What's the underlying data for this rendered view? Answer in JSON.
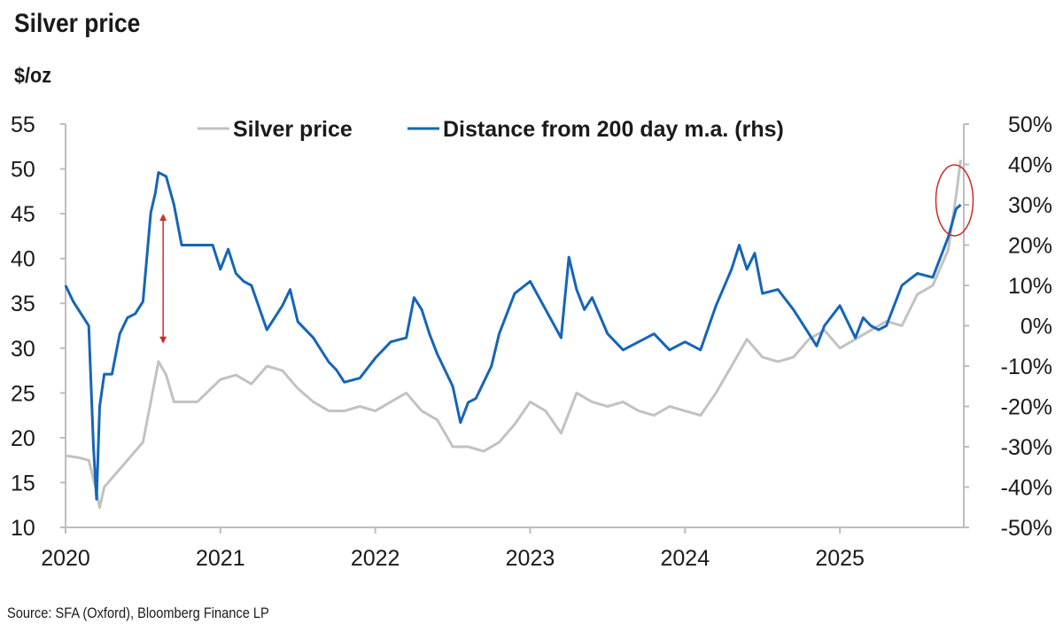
{
  "title": "Silver price",
  "y_unit": "$/oz",
  "source": "Source: SFA (Oxford), Bloomberg Finance LP",
  "colors": {
    "silver_price": "#c2c2c2",
    "distance": "#1565b8",
    "annotation": "#cc2b2b",
    "axis": "#bdbdbd"
  },
  "chart_data": {
    "type": "line",
    "title": "Silver price",
    "ylabel": "$/oz",
    "ylim": [
      10,
      55
    ],
    "y2lim": [
      -50,
      50
    ],
    "x_ticks": [
      "2020",
      "2021",
      "2022",
      "2023",
      "2024",
      "2025"
    ],
    "y_ticks": [
      "55",
      "50",
      "45",
      "40",
      "35",
      "30",
      "25",
      "20",
      "15",
      "10"
    ],
    "y2_ticks": [
      "50%",
      "40%",
      "30%",
      "20%",
      "10%",
      "0%",
      "-10%",
      "-20%",
      "-30%",
      "-40%",
      "-50%"
    ],
    "legend_position": "top",
    "grid": false,
    "series": [
      {
        "name": "Silver price",
        "axis": "left",
        "x": [
          2020.0,
          2020.08,
          2020.15,
          2020.2,
          2020.22,
          2020.25,
          2020.3,
          2020.4,
          2020.5,
          2020.55,
          2020.6,
          2020.65,
          2020.7,
          2020.75,
          2020.85,
          2021.0,
          2021.1,
          2021.2,
          2021.3,
          2021.4,
          2021.5,
          2021.6,
          2021.7,
          2021.8,
          2021.9,
          2022.0,
          2022.1,
          2022.2,
          2022.3,
          2022.4,
          2022.5,
          2022.6,
          2022.7,
          2022.8,
          2022.9,
          2023.0,
          2023.1,
          2023.2,
          2023.3,
          2023.4,
          2023.5,
          2023.6,
          2023.7,
          2023.8,
          2023.9,
          2024.0,
          2024.1,
          2024.2,
          2024.3,
          2024.4,
          2024.5,
          2024.6,
          2024.7,
          2024.8,
          2024.9,
          2025.0,
          2025.1,
          2025.2,
          2025.3,
          2025.4,
          2025.5,
          2025.6,
          2025.7,
          2025.75,
          2025.78
        ],
        "values": [
          18,
          17.8,
          17.5,
          14,
          12.2,
          14.5,
          15.5,
          17.5,
          19.5,
          24,
          28.5,
          27,
          24,
          24,
          24,
          26.5,
          27,
          26,
          28,
          27.5,
          25.5,
          24,
          23,
          23,
          23.5,
          23,
          24,
          25,
          23,
          22,
          19,
          19,
          18.5,
          19.5,
          21.5,
          24,
          23,
          20.5,
          25,
          24,
          23.5,
          24,
          23,
          22.5,
          23.5,
          23,
          22.5,
          25,
          28,
          31,
          29,
          28.5,
          29,
          31,
          32,
          30,
          31,
          32,
          33,
          32.5,
          36,
          37,
          41,
          47,
          51
        ]
      },
      {
        "name": "Distance from 200 day m.a. (rhs)",
        "axis": "right",
        "x": [
          2020.0,
          2020.05,
          2020.1,
          2020.15,
          2020.18,
          2020.2,
          2020.22,
          2020.25,
          2020.3,
          2020.35,
          2020.4,
          2020.45,
          2020.5,
          2020.55,
          2020.58,
          2020.6,
          2020.65,
          2020.7,
          2020.75,
          2020.85,
          2020.95,
          2021.0,
          2021.05,
          2021.1,
          2021.15,
          2021.2,
          2021.3,
          2021.4,
          2021.45,
          2021.5,
          2021.6,
          2021.7,
          2021.75,
          2021.8,
          2021.9,
          2022.0,
          2022.1,
          2022.2,
          2022.25,
          2022.3,
          2022.35,
          2022.4,
          2022.5,
          2022.55,
          2022.6,
          2022.65,
          2022.7,
          2022.75,
          2022.8,
          2022.9,
          2023.0,
          2023.1,
          2023.2,
          2023.25,
          2023.3,
          2023.35,
          2023.4,
          2023.5,
          2023.6,
          2023.7,
          2023.8,
          2023.9,
          2024.0,
          2024.1,
          2024.2,
          2024.3,
          2024.35,
          2024.4,
          2024.45,
          2024.5,
          2024.6,
          2024.7,
          2024.8,
          2024.85,
          2024.9,
          2025.0,
          2025.1,
          2025.15,
          2025.2,
          2025.25,
          2025.3,
          2025.4,
          2025.5,
          2025.6,
          2025.7,
          2025.75,
          2025.78
        ],
        "values": [
          10,
          6,
          3,
          0,
          -30,
          -43,
          -20,
          -12,
          -12,
          -2,
          2,
          3,
          6,
          28,
          33,
          38,
          37,
          30,
          20,
          20,
          20,
          14,
          19,
          13,
          11,
          10,
          -1,
          5,
          9,
          1,
          -3,
          -9,
          -11,
          -14,
          -13,
          -8,
          -4,
          -3,
          7,
          4,
          -2,
          -7,
          -15,
          -24,
          -19,
          -18,
          -14,
          -10,
          -2,
          8,
          11,
          4,
          -3,
          17,
          9,
          4,
          7,
          -2,
          -6,
          -4,
          -2,
          -6,
          -4,
          -6,
          5,
          14,
          20,
          14,
          18,
          8,
          9,
          4,
          -2,
          -5,
          0,
          5,
          -3,
          2,
          0,
          -1,
          0,
          10,
          13,
          12,
          22,
          29,
          30
        ]
      }
    ]
  },
  "legend": {
    "items": [
      {
        "label": "Silver price",
        "color": "#c2c2c2"
      },
      {
        "label": "Distance from 200 day m.a. (rhs)",
        "color": "#1565b8"
      }
    ]
  }
}
